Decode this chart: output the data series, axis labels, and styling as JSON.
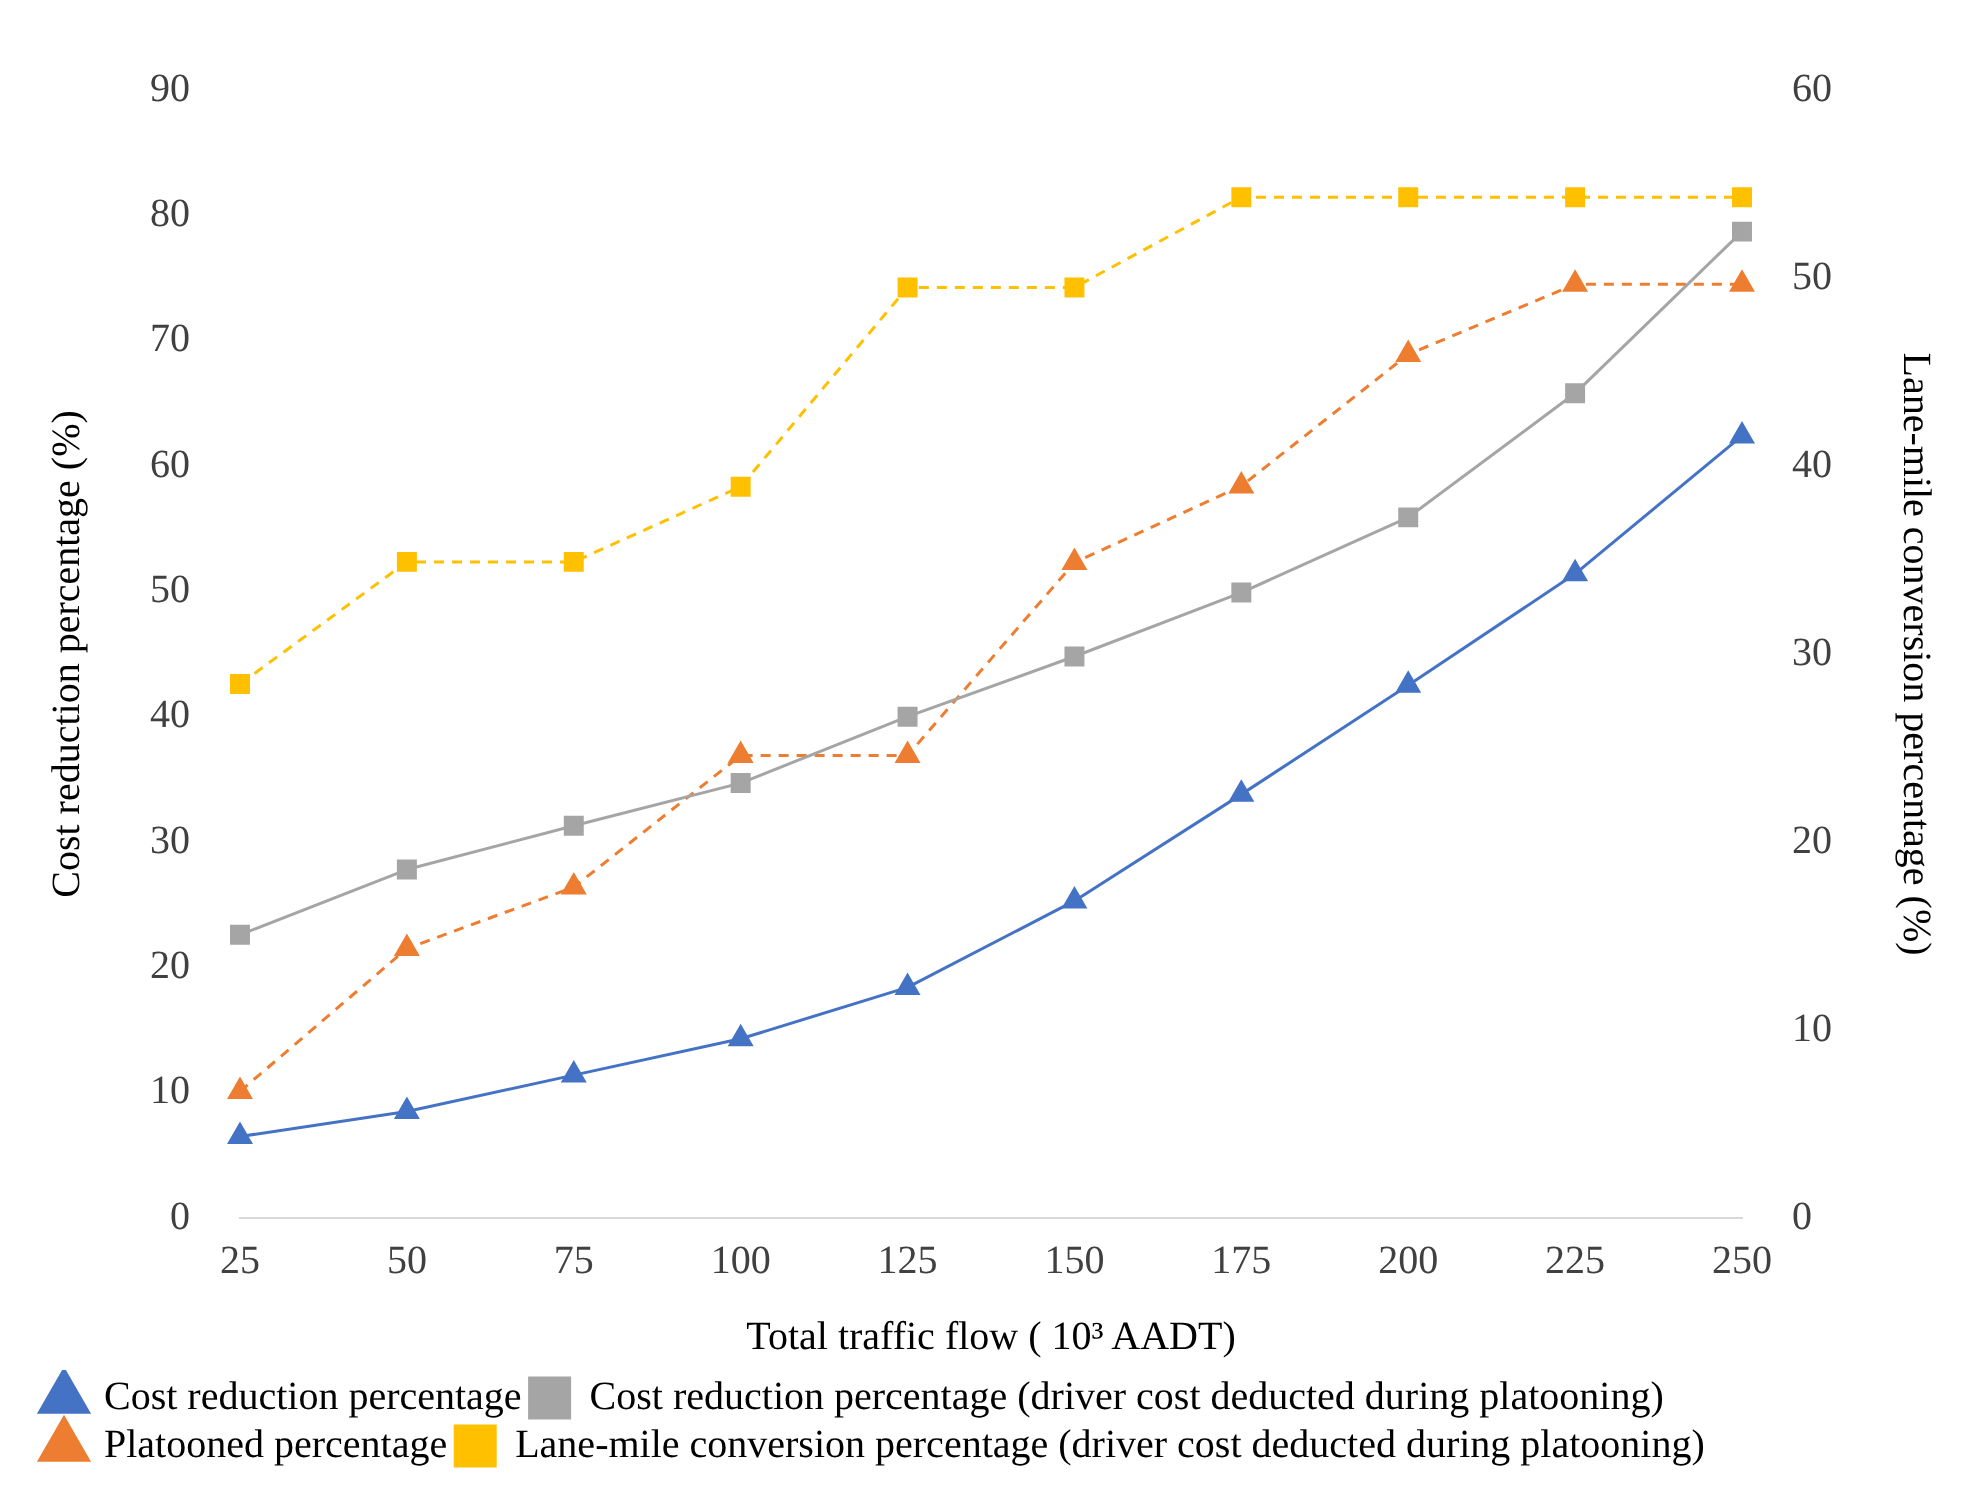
{
  "chart_data": {
    "type": "line",
    "xlabel": "Total traffic flow ( 10³ AADT)",
    "ylabel": "Cost reduction percentage (%)",
    "y2label": "Lane-mile conversion percentage (%)",
    "categories": [
      "25",
      "50",
      "75",
      "100",
      "125",
      "150",
      "175",
      "200",
      "225",
      "250"
    ],
    "ylim": [
      0,
      90
    ],
    "yticks": [
      0,
      10,
      20,
      30,
      40,
      50,
      60,
      70,
      80,
      90
    ],
    "y2lim": [
      0,
      60
    ],
    "y2ticks": [
      0,
      10,
      20,
      30,
      40,
      50,
      60
    ],
    "grid": false,
    "legend": "bottom",
    "series": [
      {
        "name": "Cost reduction percentage",
        "color": "#4472c4",
        "marker": "triangle",
        "line_style": "solid",
        "values": [
          6.5,
          8.5,
          11.4,
          14.3,
          18.4,
          25.3,
          33.8,
          42.5,
          51.4,
          62.4
        ]
      },
      {
        "name": "Cost reduction percentage (driver cost deducted during platooning)",
        "color": "#a5a5a5",
        "marker": "square",
        "line_style": "solid",
        "values": [
          22.6,
          27.8,
          31.3,
          34.7,
          40.0,
          44.8,
          49.9,
          55.9,
          65.8,
          78.7
        ]
      },
      {
        "name": "Platooned percentage",
        "color": "#ed7d31",
        "marker": "triangle",
        "line_style": "dashed",
        "values": [
          10.1,
          21.5,
          26.4,
          36.9,
          36.9,
          52.3,
          58.4,
          68.9,
          74.5,
          74.5
        ]
      },
      {
        "name": "Lane-mile conversion percentage (driver cost deducted during platooning)",
        "color": "#ffc000",
        "marker": "square",
        "line_style": "dashed",
        "axis": "y2",
        "values": [
          28.4,
          34.9,
          34.9,
          38.9,
          49.5,
          49.5,
          54.3,
          54.3,
          54.3,
          54.3
        ]
      }
    ]
  }
}
